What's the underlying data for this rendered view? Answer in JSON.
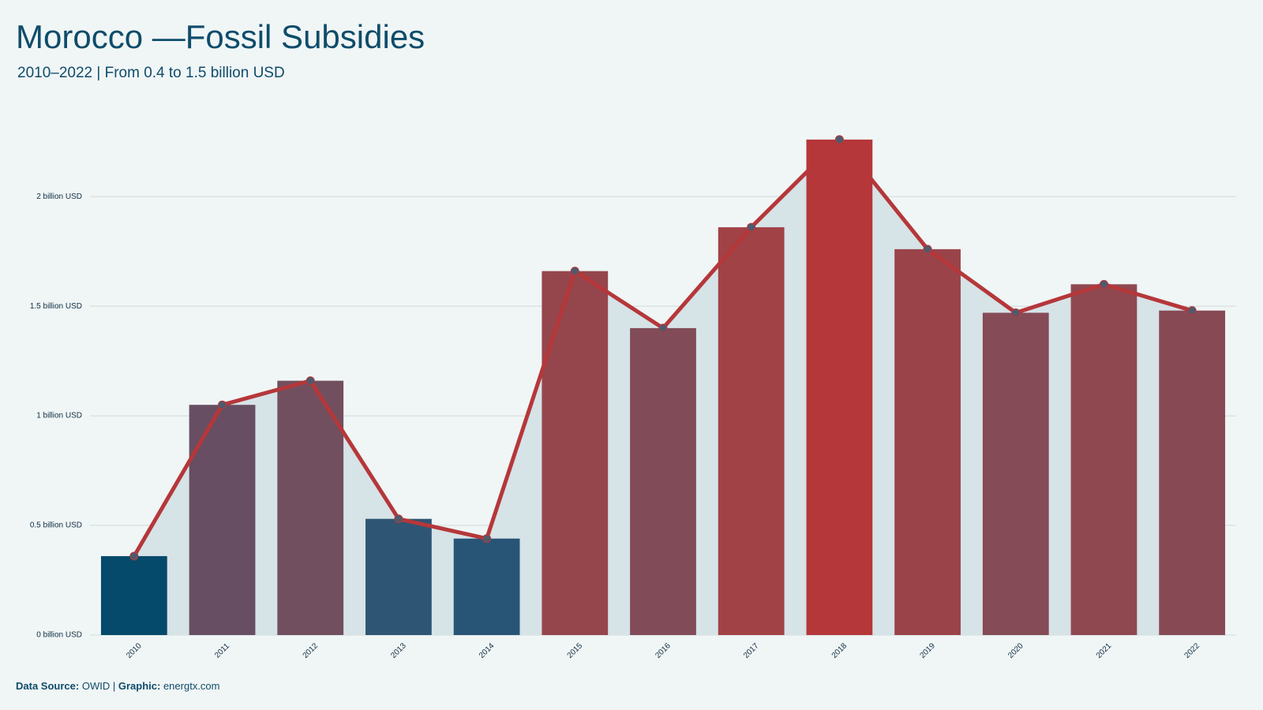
{
  "chart_data": {
    "type": "bar",
    "title": "Morocco —Fossil Subsidies",
    "subtitle": "2010–2022 | From 0.4 to 1.5 billion USD",
    "categories": [
      "2010",
      "2011",
      "2012",
      "2013",
      "2014",
      "2015",
      "2016",
      "2017",
      "2018",
      "2019",
      "2020",
      "2021",
      "2022"
    ],
    "series": [
      {
        "values": [
          0.36,
          1.05,
          1.16,
          0.53,
          0.44,
          1.66,
          1.4,
          1.86,
          2.26,
          1.76,
          1.47,
          1.6,
          1.48
        ],
        "colors": [
          "#054a6a",
          "#674e62",
          "#724f5e",
          "#2e5574",
          "#285576",
          "#95464c",
          "#814c58",
          "#a14247",
          "#b5373a",
          "#9a444a",
          "#854b56",
          "#8f4850",
          "#874a55"
        ],
        "line_color": "#b5373a",
        "area_color": "#d6e3e7",
        "marker_color": "#4f5a6d"
      }
    ],
    "ylim": [
      0,
      2.4
    ],
    "yticks": [
      {
        "value": 0,
        "label": "0 billion USD"
      },
      {
        "value": 0.5,
        "label": "0.5 billion USD"
      },
      {
        "value": 1,
        "label": "1 billion USD"
      },
      {
        "value": 1.5,
        "label": "1.5 billion USD"
      },
      {
        "value": 2,
        "label": "2 billion USD"
      }
    ],
    "grid": true,
    "footer": {
      "source_label": "Data Source:",
      "source": "OWID",
      "separator": "|",
      "graphic_label": "Graphic:",
      "graphic": "energtx.com"
    }
  }
}
